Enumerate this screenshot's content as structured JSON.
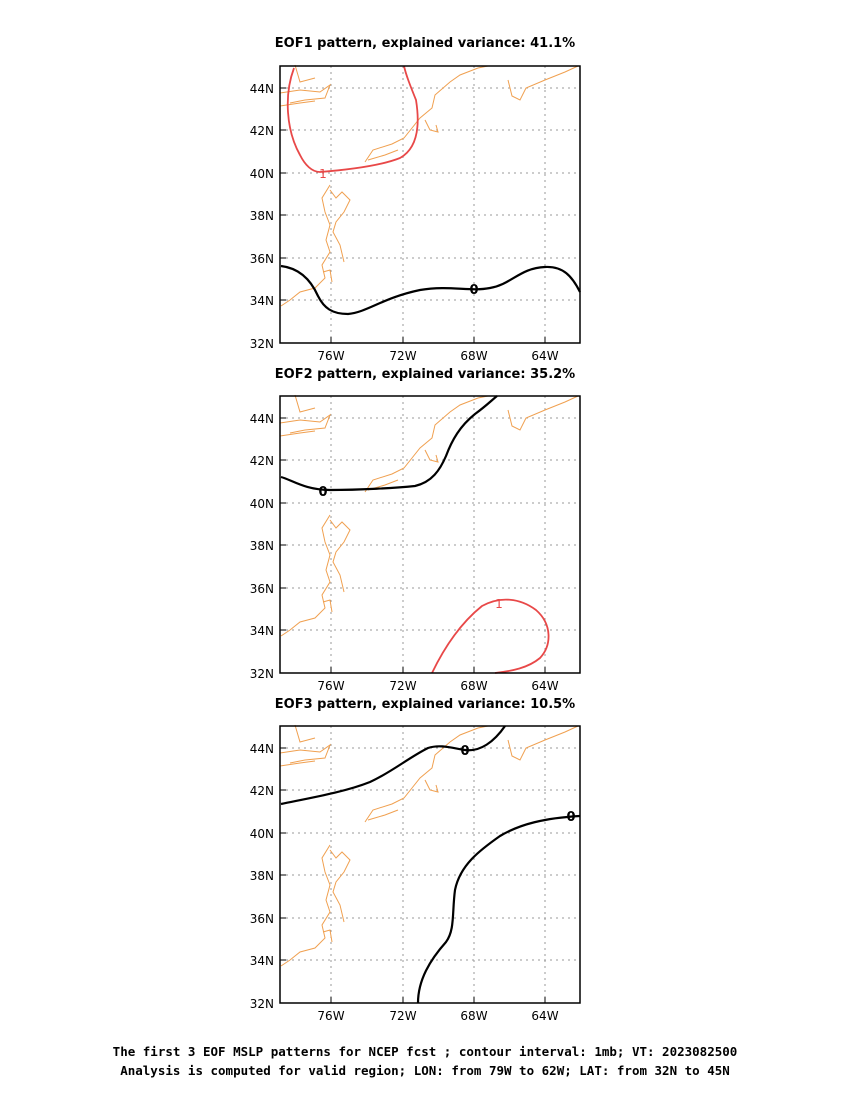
{
  "panels": [
    {
      "title": "EOF1 pattern, explained variance: 41.1%"
    },
    {
      "title": "EOF2 pattern, explained variance: 35.2%"
    },
    {
      "title": "EOF3 pattern, explained variance: 10.5%"
    }
  ],
  "axis": {
    "lat_labels": [
      "44N",
      "42N",
      "40N",
      "38N",
      "36N",
      "34N",
      "32N"
    ],
    "lon_labels": [
      "76W",
      "72W",
      "68W",
      "64W"
    ]
  },
  "contour_labels": {
    "zero": "0",
    "one": "1"
  },
  "colors": {
    "coastline": "#f0a050",
    "positive_contour": "#e84848",
    "zero_contour": "#000000",
    "grid": "#999999"
  },
  "footer": {
    "line1": "The first 3 EOF MSLP patterns for NCEP fcst ; contour interval: 1mb; VT: 2023082500",
    "line2": "Analysis is computed for valid region; LON: from 79W to 62W; LAT: from 32N to 45N"
  }
}
